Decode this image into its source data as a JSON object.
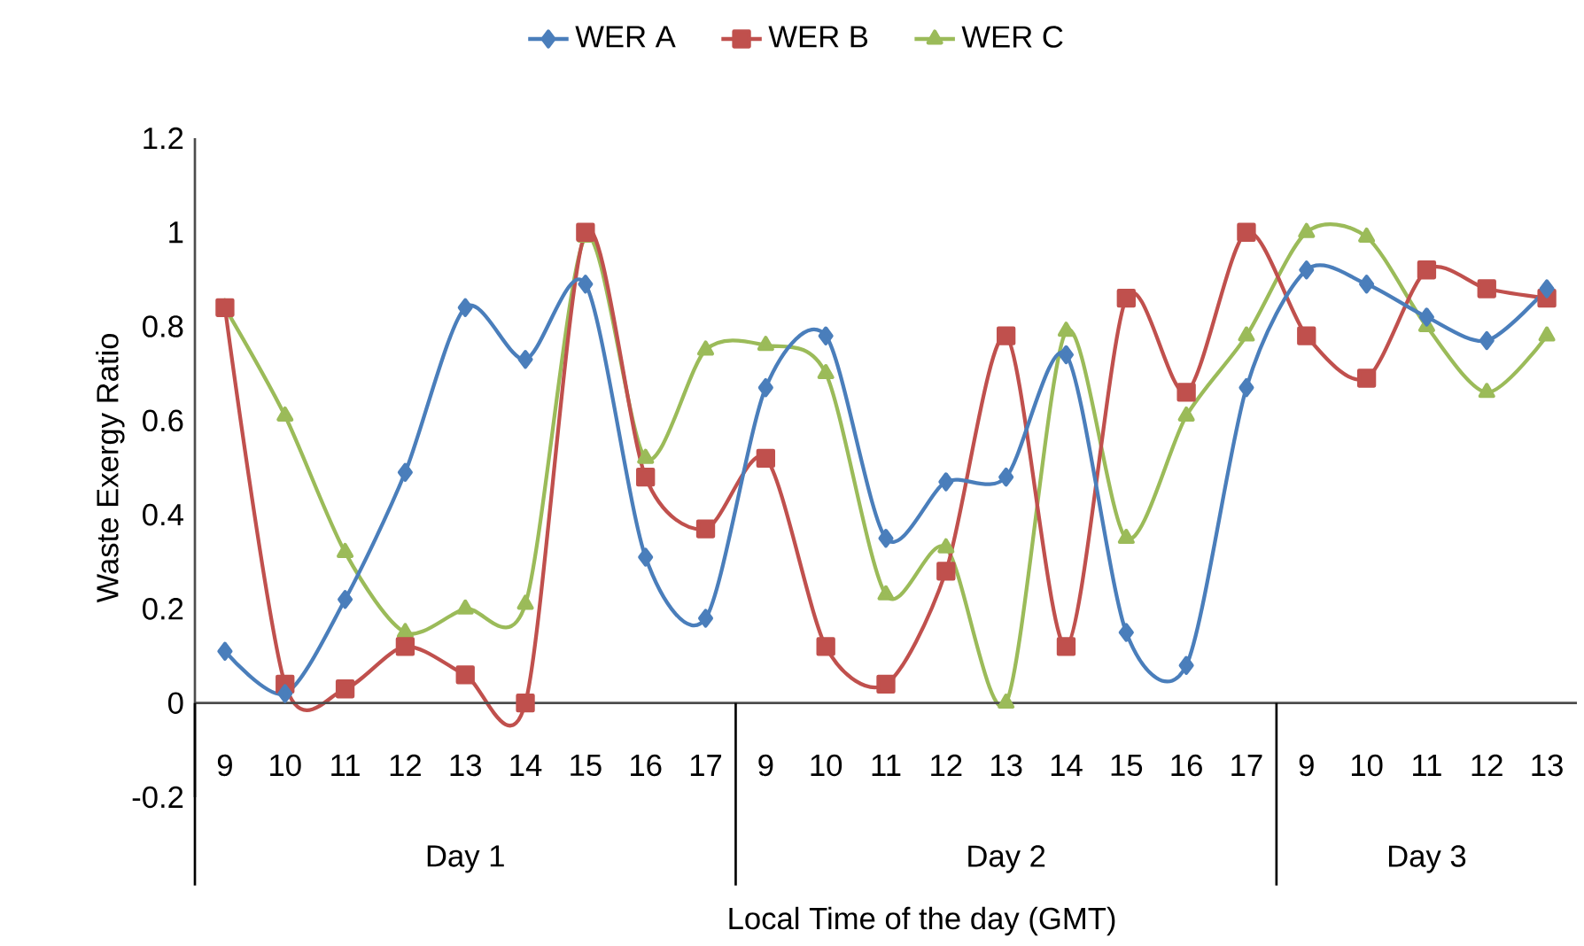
{
  "chart_data": {
    "type": "line",
    "xlabel": "Local Time of the day (GMT)",
    "ylabel": "Waste Exergy Ratio",
    "categories": [
      "9",
      "10",
      "11",
      "12",
      "13",
      "14",
      "15",
      "16",
      "17",
      "9",
      "10",
      "11",
      "12",
      "13",
      "14",
      "15",
      "16",
      "17",
      "9",
      "10",
      "11",
      "12",
      "13"
    ],
    "series": [
      {
        "name": "WER A",
        "color": "#4a7ebb",
        "marker": "diamond",
        "values": [
          0.11,
          0.02,
          0.22,
          0.49,
          0.84,
          0.73,
          0.89,
          0.31,
          0.18,
          0.67,
          0.78,
          0.35,
          0.47,
          0.48,
          0.74,
          0.15,
          0.08,
          0.67,
          0.92,
          0.89,
          0.82,
          0.77,
          0.88
        ]
      },
      {
        "name": "WER B",
        "color": "#c0504d",
        "marker": "square",
        "values": [
          0.84,
          0.04,
          0.03,
          0.12,
          0.06,
          0.0,
          1.0,
          0.48,
          0.37,
          0.52,
          0.12,
          0.04,
          0.28,
          0.78,
          0.12,
          0.86,
          0.66,
          1.0,
          0.78,
          0.69,
          0.92,
          0.88,
          0.86
        ]
      },
      {
        "name": "WER C",
        "color": "#9bbb59",
        "marker": "triangle",
        "values": [
          0.84,
          0.61,
          0.32,
          0.15,
          0.2,
          0.21,
          0.99,
          0.52,
          0.75,
          0.76,
          0.7,
          0.23,
          0.33,
          0.0,
          0.79,
          0.35,
          0.61,
          0.78,
          1.0,
          0.99,
          0.8,
          0.66,
          0.78
        ]
      }
    ],
    "annotations": [
      "Day 1",
      "Day 2",
      "Day 3"
    ],
    "ylim": [
      -0.2,
      1.2
    ],
    "yticks": [
      -0.2,
      0,
      0.2,
      0.4,
      0.6,
      0.8,
      1,
      1.2
    ],
    "grid": false,
    "legend": "top",
    "line_style": "solid"
  }
}
